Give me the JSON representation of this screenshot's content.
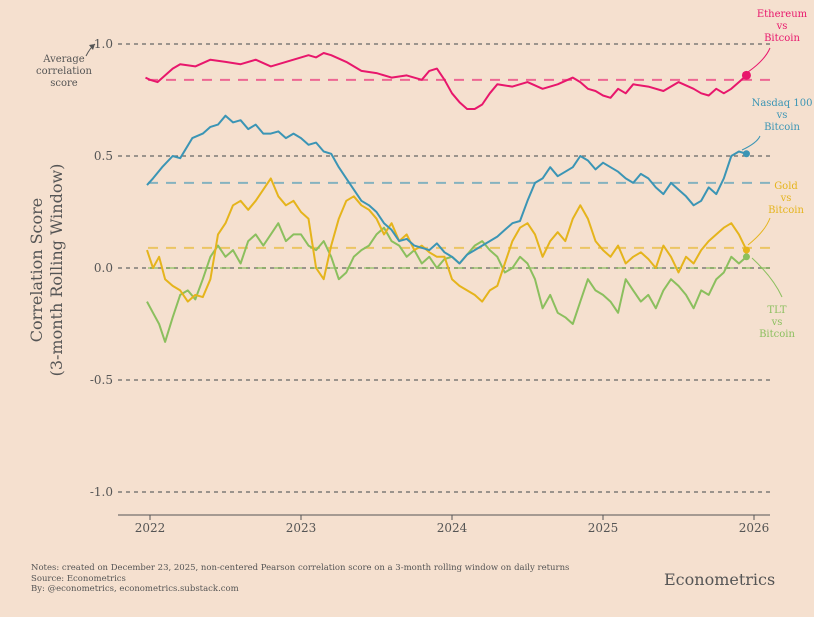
{
  "chart_data": {
    "type": "line",
    "ylabel_line1": "Correlation Score",
    "ylabel_line2": "(3-month Rolling Window)",
    "ylim": [
      -1.1,
      1.05
    ],
    "xlim": [
      2021.8,
      2026.15
    ],
    "y_ticks": [
      {
        "value": 1.0,
        "label": "1.0"
      },
      {
        "value": 0.5,
        "label": "0.5"
      },
      {
        "value": 0.0,
        "label": "0.0"
      },
      {
        "value": -0.5,
        "label": "-0.5"
      },
      {
        "value": -1.0,
        "label": "-1.0"
      }
    ],
    "x_ticks": [
      {
        "value": 2022,
        "label": "2022"
      },
      {
        "value": 2023,
        "label": "2023"
      },
      {
        "value": 2024,
        "label": "2024"
      },
      {
        "value": 2025,
        "label": "2025"
      },
      {
        "value": 2026,
        "label": "2026"
      }
    ],
    "series": [
      {
        "key": "eth",
        "name": "Ethereum vs Bitcoin",
        "label_lines": [
          "Ethereum",
          "vs",
          "Bitcoin"
        ],
        "color": "#e8176c",
        "average": 0.84,
        "x": [
          2021.97,
          2022.0,
          2022.05,
          2022.1,
          2022.15,
          2022.2,
          2022.3,
          2022.4,
          2022.5,
          2022.6,
          2022.7,
          2022.8,
          2022.9,
          2023.0,
          2023.05,
          2023.1,
          2023.15,
          2023.2,
          2023.3,
          2023.4,
          2023.5,
          2023.6,
          2023.7,
          2023.8,
          2023.85,
          2023.9,
          2023.95,
          2024.0,
          2024.05,
          2024.1,
          2024.15,
          2024.2,
          2024.25,
          2024.3,
          2024.4,
          2024.5,
          2024.6,
          2024.7,
          2024.8,
          2024.85,
          2024.9,
          2024.95,
          2025.0,
          2025.05,
          2025.1,
          2025.15,
          2025.2,
          2025.3,
          2025.4,
          2025.5,
          2025.6,
          2025.65,
          2025.7,
          2025.75,
          2025.8,
          2025.85,
          2025.9,
          2025.95
        ],
        "y": [
          0.85,
          0.84,
          0.83,
          0.86,
          0.89,
          0.91,
          0.9,
          0.93,
          0.92,
          0.91,
          0.93,
          0.9,
          0.92,
          0.94,
          0.95,
          0.94,
          0.96,
          0.95,
          0.92,
          0.88,
          0.87,
          0.85,
          0.86,
          0.84,
          0.88,
          0.89,
          0.84,
          0.78,
          0.74,
          0.71,
          0.71,
          0.73,
          0.78,
          0.82,
          0.81,
          0.83,
          0.8,
          0.82,
          0.85,
          0.83,
          0.8,
          0.79,
          0.77,
          0.76,
          0.8,
          0.78,
          0.82,
          0.81,
          0.79,
          0.83,
          0.8,
          0.78,
          0.77,
          0.8,
          0.78,
          0.8,
          0.83,
          0.86
        ]
      },
      {
        "key": "nasdaq",
        "name": "Nasdaq 100 vs Bitcoin",
        "label_lines": [
          "Nasdaq 100",
          "vs",
          "Bitcoin"
        ],
        "color": "#3b95b5",
        "average": 0.38,
        "x": [
          2021.98,
          2022.02,
          2022.08,
          2022.15,
          2022.2,
          2022.28,
          2022.35,
          2022.4,
          2022.45,
          2022.5,
          2022.55,
          2022.6,
          2022.65,
          2022.7,
          2022.75,
          2022.8,
          2022.85,
          2022.9,
          2022.95,
          2023.0,
          2023.05,
          2023.1,
          2023.15,
          2023.2,
          2023.25,
          2023.3,
          2023.35,
          2023.4,
          2023.45,
          2023.5,
          2023.55,
          2023.6,
          2023.65,
          2023.7,
          2023.75,
          2023.8,
          2023.85,
          2023.9,
          2023.95,
          2024.0,
          2024.05,
          2024.1,
          2024.15,
          2024.2,
          2024.25,
          2024.3,
          2024.35,
          2024.4,
          2024.45,
          2024.5,
          2024.55,
          2024.6,
          2024.65,
          2024.7,
          2024.75,
          2024.8,
          2024.85,
          2024.9,
          2024.95,
          2025.0,
          2025.05,
          2025.1,
          2025.15,
          2025.2,
          2025.25,
          2025.3,
          2025.35,
          2025.4,
          2025.45,
          2025.5,
          2025.55,
          2025.6,
          2025.65,
          2025.7,
          2025.75,
          2025.8,
          2025.85,
          2025.9,
          2025.95
        ],
        "y": [
          0.37,
          0.4,
          0.45,
          0.5,
          0.49,
          0.58,
          0.6,
          0.63,
          0.64,
          0.68,
          0.65,
          0.66,
          0.62,
          0.64,
          0.6,
          0.6,
          0.61,
          0.58,
          0.6,
          0.58,
          0.55,
          0.56,
          0.52,
          0.51,
          0.45,
          0.4,
          0.35,
          0.3,
          0.28,
          0.25,
          0.2,
          0.17,
          0.12,
          0.13,
          0.1,
          0.09,
          0.08,
          0.11,
          0.07,
          0.05,
          0.02,
          0.06,
          0.08,
          0.1,
          0.12,
          0.14,
          0.17,
          0.2,
          0.21,
          0.3,
          0.38,
          0.4,
          0.45,
          0.41,
          0.43,
          0.45,
          0.5,
          0.48,
          0.44,
          0.47,
          0.45,
          0.43,
          0.4,
          0.38,
          0.42,
          0.4,
          0.36,
          0.33,
          0.38,
          0.35,
          0.32,
          0.28,
          0.3,
          0.36,
          0.33,
          0.4,
          0.5,
          0.52,
          0.51
        ]
      },
      {
        "key": "gold",
        "name": "Gold vs Bitcoin",
        "label_lines": [
          "Gold",
          "vs",
          "Bitcoin"
        ],
        "color": "#e5b41c",
        "average": 0.09,
        "x": [
          2021.98,
          2022.02,
          2022.06,
          2022.1,
          2022.15,
          2022.2,
          2022.25,
          2022.3,
          2022.35,
          2022.4,
          2022.45,
          2022.5,
          2022.55,
          2022.6,
          2022.65,
          2022.7,
          2022.75,
          2022.8,
          2022.85,
          2022.9,
          2022.95,
          2023.0,
          2023.05,
          2023.1,
          2023.15,
          2023.2,
          2023.25,
          2023.3,
          2023.35,
          2023.4,
          2023.45,
          2023.5,
          2023.55,
          2023.6,
          2023.65,
          2023.7,
          2023.75,
          2023.8,
          2023.85,
          2023.9,
          2023.95,
          2024.0,
          2024.05,
          2024.1,
          2024.15,
          2024.2,
          2024.25,
          2024.3,
          2024.35,
          2024.4,
          2024.45,
          2024.5,
          2024.55,
          2024.6,
          2024.65,
          2024.7,
          2024.75,
          2024.8,
          2024.85,
          2024.9,
          2024.95,
          2025.0,
          2025.05,
          2025.1,
          2025.15,
          2025.2,
          2025.25,
          2025.3,
          2025.35,
          2025.4,
          2025.45,
          2025.5,
          2025.55,
          2025.6,
          2025.65,
          2025.7,
          2025.75,
          2025.8,
          2025.85,
          2025.9,
          2025.95
        ],
        "y": [
          0.08,
          0.0,
          0.05,
          -0.05,
          -0.08,
          -0.1,
          -0.15,
          -0.12,
          -0.13,
          -0.05,
          0.15,
          0.2,
          0.28,
          0.3,
          0.26,
          0.3,
          0.35,
          0.4,
          0.32,
          0.28,
          0.3,
          0.25,
          0.22,
          0.0,
          -0.05,
          0.1,
          0.22,
          0.3,
          0.32,
          0.28,
          0.26,
          0.22,
          0.15,
          0.2,
          0.12,
          0.15,
          0.08,
          0.1,
          0.07,
          0.05,
          0.05,
          -0.05,
          -0.08,
          -0.1,
          -0.12,
          -0.15,
          -0.1,
          -0.08,
          0.02,
          0.12,
          0.18,
          0.2,
          0.15,
          0.05,
          0.12,
          0.16,
          0.12,
          0.22,
          0.28,
          0.22,
          0.12,
          0.08,
          0.05,
          0.1,
          0.02,
          0.05,
          0.07,
          0.04,
          0.0,
          0.1,
          0.05,
          -0.02,
          0.05,
          0.02,
          0.08,
          0.12,
          0.15,
          0.18,
          0.2,
          0.15,
          0.08
        ]
      },
      {
        "key": "tlt",
        "name": "TLT vs Bitcoin",
        "label_lines": [
          "TLT",
          "vs",
          "Bitcoin"
        ],
        "color": "#8bbf5e",
        "average": 0.0,
        "x": [
          2021.98,
          2022.02,
          2022.06,
          2022.1,
          2022.15,
          2022.2,
          2022.25,
          2022.3,
          2022.35,
          2022.4,
          2022.45,
          2022.5,
          2022.55,
          2022.6,
          2022.65,
          2022.7,
          2022.75,
          2022.8,
          2022.85,
          2022.9,
          2022.95,
          2023.0,
          2023.05,
          2023.1,
          2023.15,
          2023.2,
          2023.25,
          2023.3,
          2023.35,
          2023.4,
          2023.45,
          2023.5,
          2023.55,
          2023.6,
          2023.65,
          2023.7,
          2023.75,
          2023.8,
          2023.85,
          2023.9,
          2023.95,
          2024.0,
          2024.05,
          2024.1,
          2024.15,
          2024.2,
          2024.25,
          2024.3,
          2024.35,
          2024.4,
          2024.45,
          2024.5,
          2024.55,
          2024.6,
          2024.65,
          2024.7,
          2024.75,
          2024.8,
          2024.85,
          2024.9,
          2024.95,
          2025.0,
          2025.05,
          2025.1,
          2025.15,
          2025.2,
          2025.25,
          2025.3,
          2025.35,
          2025.4,
          2025.45,
          2025.5,
          2025.55,
          2025.6,
          2025.65,
          2025.7,
          2025.75,
          2025.8,
          2025.85,
          2025.9,
          2025.95
        ],
        "y": [
          -0.15,
          -0.2,
          -0.25,
          -0.33,
          -0.22,
          -0.12,
          -0.1,
          -0.14,
          -0.05,
          0.05,
          0.1,
          0.05,
          0.08,
          0.02,
          0.12,
          0.15,
          0.1,
          0.15,
          0.2,
          0.12,
          0.15,
          0.15,
          0.1,
          0.08,
          0.12,
          0.05,
          -0.05,
          -0.02,
          0.05,
          0.08,
          0.1,
          0.15,
          0.18,
          0.12,
          0.1,
          0.05,
          0.08,
          0.02,
          0.05,
          0.0,
          0.04,
          0.05,
          0.02,
          0.06,
          0.1,
          0.12,
          0.08,
          0.05,
          -0.02,
          0.0,
          0.05,
          0.02,
          -0.05,
          -0.18,
          -0.12,
          -0.2,
          -0.22,
          -0.25,
          -0.15,
          -0.05,
          -0.1,
          -0.12,
          -0.15,
          -0.2,
          -0.05,
          -0.1,
          -0.15,
          -0.12,
          -0.18,
          -0.1,
          -0.05,
          -0.08,
          -0.12,
          -0.18,
          -0.1,
          -0.12,
          -0.05,
          -0.02,
          0.05,
          0.02,
          0.05
        ]
      }
    ]
  },
  "annotations": {
    "average_label_lines": [
      "Average",
      "correlation",
      "score"
    ]
  },
  "notes": {
    "line1": "Notes: created on December 23, 2025, non-centered Pearson correlation score on a 3-month rolling window on daily returns",
    "line2": "Source: Econometrics",
    "line3": "By: @econometrics, econometrics.substack.com"
  },
  "brand": "Econometrics"
}
